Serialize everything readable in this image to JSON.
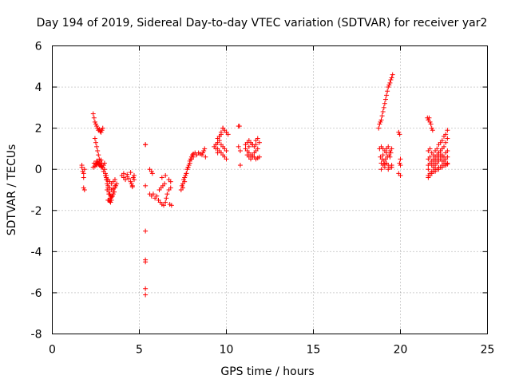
{
  "chart_data": {
    "type": "scatter",
    "title": "Day 194 of 2019, Sidereal Day-to-day VTEC variation (SDTVAR) for receiver yar2",
    "xlabel": "GPS time / hours",
    "ylabel": "SDTVAR / TECUs",
    "xlim": [
      0,
      25
    ],
    "ylim": [
      -8,
      6
    ],
    "x_ticks": [
      0,
      5,
      10,
      15,
      20,
      25
    ],
    "y_ticks": [
      -8,
      -6,
      -4,
      -2,
      0,
      2,
      4,
      6
    ],
    "x_tick_labels": [
      "0",
      "5",
      "10",
      "15",
      "20",
      "25"
    ],
    "y_tick_labels": [
      "-8",
      "-6",
      "-4",
      "-2",
      "0",
      "2",
      "4",
      "6"
    ],
    "grid": true,
    "marker": "+",
    "color": "#ff0000",
    "series": [
      {
        "name": "SDTVAR",
        "x": [
          1.7,
          1.7,
          1.75,
          1.8,
          1.8,
          1.85,
          1.8,
          1.85,
          2.35,
          2.4,
          2.45,
          2.5,
          2.55,
          2.6,
          2.65,
          2.7,
          2.75,
          2.8,
          2.85,
          2.9,
          2.45,
          2.5,
          2.55,
          2.6,
          2.65,
          2.7,
          2.55,
          2.6,
          2.65,
          2.7,
          2.75,
          2.8,
          2.85,
          2.9,
          2.95,
          3.0,
          2.4,
          2.5,
          2.6,
          2.7,
          2.8,
          2.35,
          2.45,
          2.55,
          2.65,
          2.75,
          2.85,
          2.95,
          3.05,
          3.1,
          3.15,
          3.2,
          3.25,
          3.3,
          3.35,
          3.4,
          3.45,
          3.5,
          3.55,
          3.6,
          3.65,
          3.7,
          3.1,
          3.2,
          3.3,
          3.4,
          3.5,
          3.6,
          3.15,
          3.25,
          3.35,
          3.45,
          3.55,
          3.2,
          3.3,
          3.4,
          3.5,
          3.6,
          3.0,
          3.05,
          3.1,
          3.15,
          3.2,
          3.25,
          3.3,
          3.35,
          3.4,
          4.0,
          4.1,
          4.2,
          4.3,
          4.4,
          4.5,
          4.55,
          4.6,
          4.65,
          4.7,
          4.1,
          4.3,
          4.5,
          4.7,
          4.6,
          5.35,
          5.35,
          5.35,
          5.35,
          5.35,
          5.35,
          5.35,
          5.35,
          5.6,
          5.7,
          5.75,
          5.6,
          5.7,
          5.8,
          5.9,
          6.0,
          6.1,
          6.2,
          6.3,
          6.4,
          6.5,
          6.55,
          6.6,
          6.15,
          6.25,
          6.35,
          6.45,
          6.3,
          6.5,
          6.7,
          6.8,
          6.75,
          6.85,
          6.7,
          6.8,
          7.4,
          7.45,
          7.5,
          7.55,
          7.6,
          7.65,
          7.7,
          7.75,
          7.8,
          7.85,
          7.9,
          7.95,
          8.0,
          8.05,
          8.1,
          8.2,
          8.3,
          8.4,
          8.5,
          7.5,
          7.6,
          7.7,
          7.8,
          7.9,
          8.0,
          8.1,
          8.6,
          8.7,
          8.8,
          8.65,
          8.75,
          9.3,
          9.4,
          9.5,
          9.6,
          9.7,
          9.8,
          9.9,
          10.0,
          10.1,
          9.4,
          9.5,
          9.6,
          9.7,
          9.8,
          9.9,
          10.0,
          9.5,
          9.6,
          9.7,
          9.8,
          9.9,
          10.0,
          9.6,
          9.7,
          9.8,
          10.0,
          9.4,
          9.5,
          10.7,
          10.75,
          10.7,
          10.8,
          10.8,
          11.1,
          11.2,
          11.3,
          11.4,
          11.5,
          11.6,
          11.7,
          11.8,
          11.9,
          11.1,
          11.2,
          11.3,
          11.4,
          11.5,
          11.6,
          11.7,
          11.8,
          11.2,
          11.3,
          11.4,
          11.5,
          11.6,
          11.7,
          11.8,
          11.9,
          11.3,
          11.5,
          11.7,
          18.75,
          18.8,
          18.85,
          18.9,
          18.95,
          19.0,
          19.05,
          19.1,
          19.15,
          19.2,
          19.25,
          19.3,
          19.35,
          19.4,
          19.45,
          19.5,
          19.55,
          18.8,
          18.9,
          19.0,
          19.1,
          19.2,
          19.3,
          19.4,
          19.5,
          18.85,
          18.95,
          19.05,
          19.15,
          19.25,
          19.35,
          19.45,
          18.9,
          19.0,
          19.1,
          19.2,
          19.3,
          19.4,
          19.5,
          18.9,
          19.1,
          19.3,
          19.5,
          19.0,
          19.2,
          19.4,
          19.9,
          19.95,
          20.0,
          19.95,
          20.0,
          19.9,
          20.0,
          21.55,
          21.6,
          21.65,
          21.7,
          21.75,
          21.8,
          21.85,
          21.6,
          21.7,
          21.8,
          21.9,
          22.0,
          22.1,
          22.2,
          22.3,
          22.4,
          22.5,
          22.6,
          22.7,
          21.6,
          21.7,
          21.8,
          21.9,
          22.0,
          22.1,
          22.2,
          22.3,
          22.4,
          22.5,
          22.6,
          22.7,
          21.6,
          21.7,
          21.8,
          21.9,
          22.0,
          22.1,
          22.2,
          22.3,
          22.4,
          22.5,
          22.6,
          22.7,
          21.6,
          21.8,
          22.0,
          22.2,
          22.4,
          22.6,
          21.7,
          21.9,
          22.1,
          22.3,
          22.5,
          22.7,
          21.6,
          21.8,
          22.0,
          22.2,
          22.4,
          22.6,
          22.2,
          22.3,
          22.4,
          22.5,
          22.6,
          22.7,
          21.9,
          22.0,
          22.1,
          22.2,
          22.3,
          22.4,
          22.5,
          22.6,
          22.7,
          21.6,
          21.7
        ],
        "y": [
          0.2,
          0.1,
          -0.1,
          -0.2,
          -0.4,
          0.0,
          -0.9,
          -1.0,
          2.7,
          2.5,
          2.3,
          2.2,
          2.1,
          2.0,
          1.9,
          1.95,
          1.85,
          1.8,
          1.9,
          2.0,
          1.5,
          1.3,
          1.1,
          0.9,
          0.7,
          0.5,
          0.4,
          0.3,
          0.25,
          0.2,
          0.2,
          0.15,
          0.3,
          0.1,
          0.2,
          0.3,
          0.3,
          0.25,
          0.35,
          0.4,
          0.45,
          0.1,
          0.15,
          0.2,
          0.3,
          0.25,
          0.1,
          -0.1,
          -0.3,
          -0.5,
          -0.7,
          -0.9,
          -1.1,
          -1.2,
          -1.3,
          -1.35,
          -1.3,
          -1.2,
          -1.1,
          -0.9,
          -0.8,
          -0.7,
          -0.4,
          -0.5,
          -0.6,
          -0.7,
          -0.6,
          -0.5,
          -1.0,
          -1.2,
          -1.4,
          -1.3,
          -1.1,
          -0.8,
          -0.9,
          -1.0,
          -0.95,
          -0.8,
          0.0,
          -0.2,
          -0.3,
          -0.5,
          -1.5,
          -1.5,
          -1.55,
          -1.6,
          -1.5,
          -0.3,
          -0.4,
          -0.5,
          -0.35,
          -0.45,
          -0.6,
          -0.7,
          -0.8,
          -0.4,
          -0.5,
          -0.2,
          -0.25,
          -0.15,
          -0.3,
          -0.85,
          1.2,
          1.2,
          -0.8,
          -3.0,
          -4.4,
          -4.5,
          -5.8,
          -6.1,
          0.0,
          -0.1,
          -0.2,
          -1.2,
          -1.3,
          -1.2,
          -1.4,
          -1.3,
          -1.5,
          -1.6,
          -1.7,
          -1.75,
          -1.6,
          -1.4,
          -1.2,
          -1.0,
          -0.9,
          -0.8,
          -0.7,
          -0.4,
          -0.3,
          -0.5,
          -0.6,
          -1.7,
          -1.75,
          -1.0,
          -0.9,
          -1.0,
          -0.8,
          -0.7,
          -0.5,
          -0.4,
          -0.3,
          -0.2,
          0.0,
          0.1,
          0.2,
          0.3,
          0.5,
          0.6,
          0.7,
          0.75,
          0.8,
          0.7,
          0.8,
          0.75,
          -0.9,
          -0.6,
          -0.2,
          0.1,
          0.4,
          0.5,
          0.6,
          0.7,
          0.9,
          0.6,
          0.8,
          1.0,
          1.1,
          1.2,
          1.5,
          1.6,
          1.8,
          2.0,
          1.9,
          1.8,
          1.7,
          1.2,
          1.0,
          0.9,
          0.8,
          0.7,
          0.6,
          0.5,
          1.3,
          1.4,
          1.2,
          1.1,
          1.0,
          0.9,
          1.6,
          1.7,
          2.0,
          1.8,
          1.0,
          0.8,
          2.1,
          2.1,
          1.1,
          0.9,
          0.2,
          1.2,
          1.3,
          1.4,
          1.3,
          1.2,
          1.1,
          1.4,
          1.5,
          1.3,
          1.0,
          0.9,
          0.8,
          0.7,
          0.6,
          0.8,
          0.9,
          1.0,
          0.7,
          0.6,
          0.5,
          0.7,
          0.6,
          0.5,
          0.55,
          0.6,
          1.1,
          1.2,
          1.2,
          2.0,
          2.2,
          2.3,
          2.4,
          2.6,
          2.8,
          3.0,
          3.2,
          3.4,
          3.6,
          3.8,
          4.0,
          4.1,
          4.2,
          4.35,
          4.45,
          4.6,
          1.0,
          1.1,
          1.0,
          0.9,
          1.0,
          1.1,
          0.9,
          1.0,
          0.6,
          0.5,
          0.4,
          0.5,
          0.6,
          0.7,
          0.8,
          0.3,
          0.2,
          0.25,
          0.3,
          0.2,
          0.1,
          0.2,
          0.0,
          0.1,
          0.0,
          0.1,
          0.7,
          0.8,
          0.6,
          1.8,
          1.7,
          0.5,
          0.3,
          0.2,
          -0.2,
          -0.3,
          2.5,
          2.4,
          2.5,
          2.3,
          2.2,
          2.0,
          1.9,
          0.9,
          1.0,
          0.8,
          0.7,
          0.9,
          1.0,
          1.2,
          1.3,
          1.4,
          1.6,
          1.7,
          1.9,
          0.5,
          0.6,
          0.4,
          0.5,
          0.6,
          0.7,
          0.8,
          0.9,
          1.0,
          1.1,
          1.3,
          1.5,
          0.2,
          0.3,
          0.2,
          0.1,
          0.2,
          0.3,
          0.4,
          0.5,
          0.6,
          0.4,
          0.5,
          0.6,
          0.0,
          -0.1,
          0.0,
          0.1,
          0.2,
          0.3,
          -0.2,
          -0.1,
          0.0,
          0.1,
          0.2,
          0.3,
          -0.3,
          -0.2,
          -0.1,
          0.0,
          0.1,
          0.2,
          0.8,
          0.9,
          0.7,
          0.6,
          0.8,
          0.9,
          0.3,
          0.4,
          0.5,
          0.6,
          0.7,
          0.4,
          0.3,
          0.2,
          0.25,
          -0.4,
          -0.3
        ]
      }
    ]
  }
}
